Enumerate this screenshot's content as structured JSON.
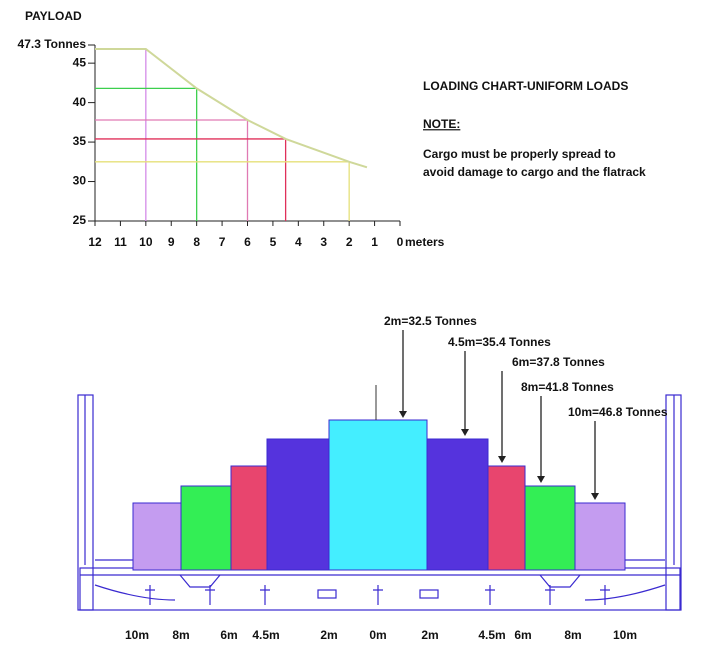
{
  "chart_data": {
    "type": "line",
    "y_label": "PAYLOAD",
    "x_label": "meters",
    "x": [
      12,
      10,
      8,
      6,
      4.5,
      2,
      1.3
    ],
    "values": [
      46.8,
      46.8,
      41.8,
      37.8,
      35.4,
      32.5,
      31.8
    ],
    "color": "#cfd89a",
    "guide_colors": [
      null,
      "#d58be8",
      "#3ccf4e",
      "#e07ab3",
      "#e0305a",
      "#e6e07a",
      null
    ],
    "xlim": [
      12,
      0
    ],
    "xticks": [
      12,
      11,
      10,
      9,
      8,
      7,
      6,
      5,
      4,
      3,
      2,
      1,
      0
    ],
    "ylim": [
      25,
      47.3
    ],
    "yticks": [
      25,
      30,
      35,
      40,
      45,
      {
        "value": 47.3,
        "label": "47.3 Tonnes"
      }
    ]
  },
  "notes": {
    "heading": "LOADING CHART-UNIFORM LOADS",
    "note_label": "NOTE:",
    "lines": [
      "Cargo must be properly spread to",
      "avoid damage to cargo and the flatrack"
    ]
  },
  "diagram": {
    "callouts": [
      "2m=32.5 Tonnes",
      "4.5m=35.4 Tonnes",
      "6m=37.8 Tonnes",
      "8m=41.8 Tonnes",
      "10m=46.8 Tonnes"
    ],
    "positions": [
      "10m",
      "8m",
      "6m",
      "4.5m",
      "2m",
      "0m",
      "2m",
      "4.5m",
      "6m",
      "8m",
      "10m"
    ]
  }
}
